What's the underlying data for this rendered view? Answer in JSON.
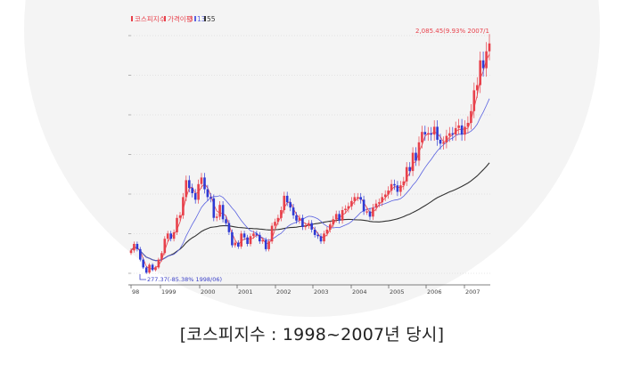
{
  "chart_data": {
    "type": "candlestick",
    "legend": {
      "index_name": "코스피지수",
      "ma_label": "가격이평",
      "ma_periods": [
        "3",
        "13",
        "55"
      ],
      "colors": {
        "index": "#e8414b",
        "ma3": "#e8414b",
        "ma13": "#5a62e0",
        "ma55": "#333333"
      }
    },
    "x_ticks": [
      "98",
      "1999",
      "2000",
      "2001",
      "2002",
      "2003",
      "2004",
      "2005",
      "2006",
      "2007"
    ],
    "annotations": {
      "high": "2,085.45(9.93% 2007/1",
      "low": "277.37(-85.38% 1998/06)"
    },
    "series": [
      {
        "name": "코스피지수",
        "points": [
          [
            "1998-01",
            470
          ],
          [
            "1998-02",
            520
          ],
          [
            "1998-03",
            480
          ],
          [
            "1998-04",
            400
          ],
          [
            "1998-05",
            340
          ],
          [
            "1998-06",
            300
          ],
          [
            "1998-07",
            360
          ],
          [
            "1998-08",
            320
          ],
          [
            "1998-09",
            340
          ],
          [
            "1998-10",
            400
          ],
          [
            "1998-11",
            450
          ],
          [
            "1998-12",
            560
          ],
          [
            "1999-01",
            600
          ],
          [
            "1999-02",
            560
          ],
          [
            "1999-03",
            610
          ],
          [
            "1999-04",
            720
          ],
          [
            "1999-05",
            740
          ],
          [
            "1999-06",
            880
          ],
          [
            "1999-07",
            1010
          ],
          [
            "1999-08",
            950
          ],
          [
            "1999-09",
            910
          ],
          [
            "1999-10",
            860
          ],
          [
            "1999-11",
            980
          ],
          [
            "1999-12",
            1030
          ],
          [
            "2000-01",
            940
          ],
          [
            "2000-02",
            880
          ],
          [
            "2000-03",
            870
          ],
          [
            "2000-04",
            720
          ],
          [
            "2000-05",
            730
          ],
          [
            "2000-06",
            820
          ],
          [
            "2000-07",
            710
          ],
          [
            "2000-08",
            680
          ],
          [
            "2000-09",
            610
          ],
          [
            "2000-10",
            510
          ],
          [
            "2000-11",
            530
          ],
          [
            "2000-12",
            500
          ],
          [
            "2001-01",
            600
          ],
          [
            "2001-02",
            570
          ],
          [
            "2001-03",
            520
          ],
          [
            "2001-04",
            580
          ],
          [
            "2001-05",
            600
          ],
          [
            "2001-06",
            590
          ],
          [
            "2001-07",
            540
          ],
          [
            "2001-08",
            550
          ],
          [
            "2001-09",
            480
          ],
          [
            "2001-10",
            540
          ],
          [
            "2001-11",
            660
          ],
          [
            "2001-12",
            690
          ],
          [
            "2002-01",
            720
          ],
          [
            "2002-02",
            780
          ],
          [
            "2002-03",
            890
          ],
          [
            "2002-04",
            840
          ],
          [
            "2002-05",
            800
          ],
          [
            "2002-06",
            740
          ],
          [
            "2002-07",
            700
          ],
          [
            "2002-08",
            720
          ],
          [
            "2002-09",
            650
          ],
          [
            "2002-10",
            660
          ],
          [
            "2002-11",
            680
          ],
          [
            "2002-12",
            630
          ],
          [
            "2003-01",
            590
          ],
          [
            "2003-02",
            580
          ],
          [
            "2003-03",
            540
          ],
          [
            "2003-04",
            600
          ],
          [
            "2003-05",
            630
          ],
          [
            "2003-06",
            670
          ],
          [
            "2003-07",
            710
          ],
          [
            "2003-08",
            750
          ],
          [
            "2003-09",
            700
          ],
          [
            "2003-10",
            780
          ],
          [
            "2003-11",
            790
          ],
          [
            "2003-12",
            810
          ],
          [
            "2004-01",
            850
          ],
          [
            "2004-02",
            880
          ],
          [
            "2004-03",
            880
          ],
          [
            "2004-04",
            860
          ],
          [
            "2004-05",
            770
          ],
          [
            "2004-06",
            770
          ],
          [
            "2004-07",
            730
          ],
          [
            "2004-08",
            800
          ],
          [
            "2004-09",
            830
          ],
          [
            "2004-10",
            840
          ],
          [
            "2004-11",
            880
          ],
          [
            "2004-12",
            900
          ],
          [
            "2005-01",
            930
          ],
          [
            "2005-02",
            980
          ],
          [
            "2005-03",
            970
          ],
          [
            "2005-04",
            920
          ],
          [
            "2005-05",
            970
          ],
          [
            "2005-06",
            1000
          ],
          [
            "2005-07",
            1110
          ],
          [
            "2005-08",
            1080
          ],
          [
            "2005-09",
            1220
          ],
          [
            "2005-10",
            1160
          ],
          [
            "2005-11",
            1300
          ],
          [
            "2005-12",
            1380
          ],
          [
            "2006-01",
            1360
          ],
          [
            "2006-02",
            1370
          ],
          [
            "2006-03",
            1360
          ],
          [
            "2006-04",
            1420
          ],
          [
            "2006-05",
            1320
          ],
          [
            "2006-06",
            1290
          ],
          [
            "2006-07",
            1300
          ],
          [
            "2006-08",
            1350
          ],
          [
            "2006-09",
            1370
          ],
          [
            "2006-10",
            1360
          ],
          [
            "2006-11",
            1410
          ],
          [
            "2006-12",
            1430
          ],
          [
            "2007-01",
            1360
          ],
          [
            "2007-02",
            1420
          ],
          [
            "2007-03",
            1450
          ],
          [
            "2007-04",
            1540
          ],
          [
            "2007-05",
            1700
          ],
          [
            "2007-06",
            1740
          ],
          [
            "2007-07",
            1930
          ],
          [
            "2007-08",
            1870
          ],
          [
            "2007-09",
            2000
          ],
          [
            "2007-10",
            2060
          ]
        ]
      }
    ]
  },
  "caption": "[코스피지수 : 1998~2007년 당시]"
}
